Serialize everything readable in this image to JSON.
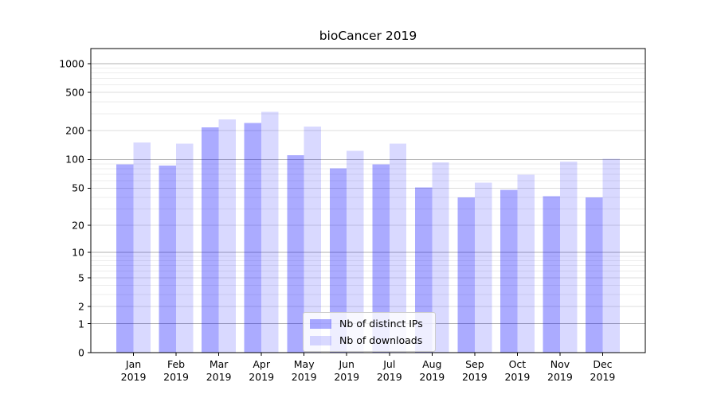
{
  "chart_data": {
    "type": "bar",
    "title": "bioCancer 2019",
    "categories": [
      "Jan",
      "Feb",
      "Mar",
      "Apr",
      "May",
      "Jun",
      "Jul",
      "Aug",
      "Sep",
      "Oct",
      "Nov",
      "Dec"
    ],
    "x_tick_line2": "2019",
    "series": [
      {
        "name": "Nb of distinct IPs",
        "color": "#0000ff",
        "alpha": 0.33,
        "apparent_color": "#aaaaff",
        "values": [
          89,
          86,
          217,
          240,
          111,
          81,
          89,
          51,
          40,
          48,
          41,
          40
        ]
      },
      {
        "name": "Nb of downloads",
        "color": "#0000ff",
        "alpha": 0.15,
        "apparent_color": "#d9d9ff",
        "values": [
          151,
          147,
          263,
          314,
          221,
          123,
          146,
          93,
          57,
          69,
          95,
          102
        ]
      }
    ],
    "yscale": "log1p",
    "y_ticks": [
      0,
      1,
      2,
      5,
      10,
      20,
      50,
      100,
      200,
      500,
      1000
    ],
    "ylim": [
      0,
      1430
    ],
    "xlabel": "",
    "ylabel": "",
    "grid": true,
    "grid_color_major": "#b0b0b0",
    "grid_color_labeled": "#dcdcdc",
    "grid_color_minor": "#ededed",
    "axis_color": "#000000",
    "background": "#ffffff",
    "legend_position": "lower-center-inside"
  }
}
